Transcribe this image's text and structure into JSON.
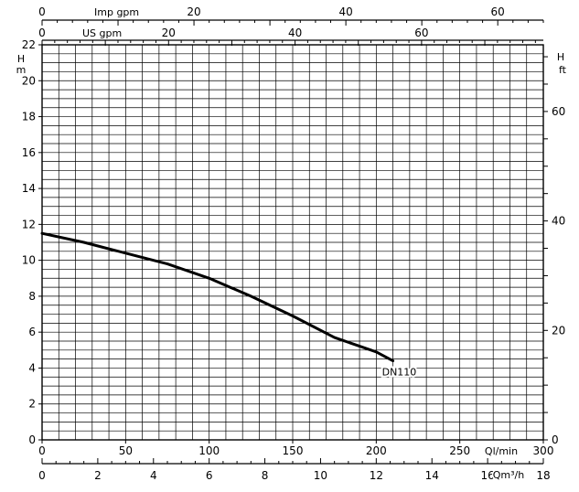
{
  "chart_data": {
    "type": "line",
    "xlabel": "Ql/min",
    "xlim": [
      0,
      300
    ],
    "ylabel_left_top": "H",
    "ylabel_left_unit": "m",
    "ylim": [
      0,
      22
    ],
    "y_ticks_left": [
      "0",
      "2",
      "4",
      "6",
      "8",
      "10",
      "12",
      "14",
      "16",
      "18",
      "20",
      "22"
    ],
    "x_ticks_bottom": [
      "0",
      "50",
      "100",
      "150",
      "200",
      "250",
      "300"
    ],
    "secondary_axes": {
      "qm3h": {
        "label": "Qm³/h",
        "max": 18,
        "ticks": [
          "0",
          "2",
          "4",
          "6",
          "8",
          "10",
          "12",
          "14",
          "16",
          "18"
        ]
      },
      "us_gpm": {
        "label": "US gpm",
        "max": 79.25,
        "ticks": [
          "0",
          "20",
          "40",
          "60"
        ]
      },
      "imp_gpm": {
        "label": "Imp gpm",
        "max": 66,
        "ticks": [
          "0",
          "20",
          "40",
          "60"
        ]
      },
      "head_ft": {
        "label_top": "H",
        "label_unit": "ft",
        "max": 72.18,
        "ticks": [
          "0",
          "20",
          "40",
          "60"
        ]
      }
    },
    "series": [
      {
        "name": "DN110",
        "x": [
          0,
          25,
          50,
          75,
          100,
          125,
          150,
          175,
          200,
          210
        ],
        "y": [
          11.5,
          11.0,
          10.4,
          9.8,
          9.0,
          8.0,
          6.9,
          5.7,
          4.9,
          4.4
        ]
      }
    ]
  }
}
